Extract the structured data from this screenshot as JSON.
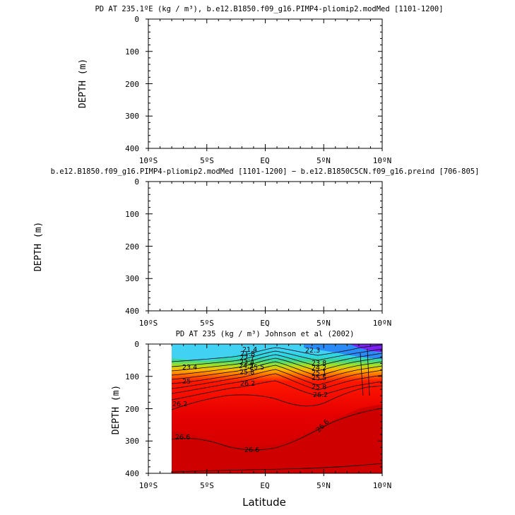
{
  "chart_data": [
    {
      "type": "contour",
      "title": "PD AT 235.1ºE (kg / m³), b.e12.B1850.f09_g16.PIMP4-pliomip2.modMed [1101-1200]",
      "ylabel": "DEPTH (m)",
      "xlabel": "",
      "xlim": [
        -10,
        10
      ],
      "ylim": [
        400,
        0
      ],
      "x_ticks": [
        "10ºS",
        "5ºS",
        "EQ",
        "5ºN",
        "10ºN"
      ],
      "y_ticks": [
        "0",
        "100",
        "200",
        "300",
        "400"
      ],
      "filled": false
    },
    {
      "type": "contour",
      "title": "b.e12.B1850.f09_g16.PIMP4-pliomip2.modMed [1101-1200] − b.e12.B1850C5CN.f09_g16.preind [706-805]",
      "ylabel": "DEPTH (m)",
      "xlabel": "",
      "xlim": [
        -10,
        10
      ],
      "ylim": [
        400,
        0
      ],
      "x_ticks": [
        "10ºS",
        "5ºS",
        "EQ",
        "5ºN",
        "10ºN"
      ],
      "y_ticks": [
        "0",
        "100",
        "200",
        "300",
        "400"
      ],
      "filled": false
    },
    {
      "type": "contour",
      "title": "PD AT 235 (kg / m³) Johnson et al (2002)",
      "ylabel": "DEPTH (m)",
      "xlabel": "Latitude",
      "xlim": [
        -10,
        10
      ],
      "ylim": [
        400,
        0
      ],
      "data_xlim": [
        -8,
        10
      ],
      "x_ticks": [
        "10ºS",
        "5ºS",
        "EQ",
        "5ºN",
        "10ºN"
      ],
      "y_ticks": [
        "0",
        "100",
        "200",
        "300",
        "400"
      ],
      "filled": true,
      "contour_labels": [
        {
          "text": "23.4",
          "lat": -8.6,
          "depth": 72
        },
        {
          "text": "25",
          "lat": -6.7,
          "depth": 112
        },
        {
          "text": "26.2",
          "lat": -7.4,
          "depth": 195
        },
        {
          "text": "26.6",
          "lat": -7.0,
          "depth": 286
        },
        {
          "text": "26.6",
          "lat": -1.5,
          "depth": 323
        },
        {
          "text": "26.2",
          "lat": -1.3,
          "depth": 125
        },
        {
          "text": "21.4",
          "lat": -1.0,
          "depth": 24
        },
        {
          "text": "21.8",
          "lat": -1.2,
          "depth": 35
        },
        {
          "text": "22.7",
          "lat": -1.3,
          "depth": 47
        },
        {
          "text": "23.4",
          "lat": -1.4,
          "depth": 60
        },
        {
          "text": "24.2",
          "lat": -1.5,
          "depth": 71
        },
        {
          "text": "25.5",
          "lat": -0.3,
          "depth": 75
        },
        {
          "text": "25.8",
          "lat": -1.4,
          "depth": 89
        },
        {
          "text": "22.3",
          "lat": 4.2,
          "depth": 16
        },
        {
          "text": "23.8",
          "lat": 4.5,
          "depth": 60
        },
        {
          "text": "24.2",
          "lat": 4.4,
          "depth": 75
        },
        {
          "text": "25.1",
          "lat": 4.3,
          "depth": 89
        },
        {
          "text": "25.5",
          "lat": 4.3,
          "depth": 104
        },
        {
          "text": "25.8",
          "lat": 4.4,
          "depth": 118
        },
        {
          "text": "26.2",
          "lat": 4.6,
          "depth": 165
        },
        {
          "text": "26.6",
          "lat": 5.0,
          "depth": 258
        }
      ]
    }
  ]
}
